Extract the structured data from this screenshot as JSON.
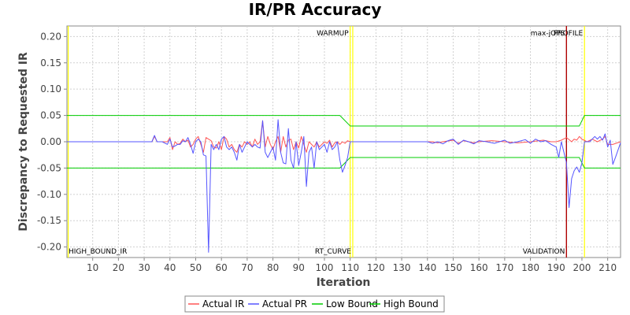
{
  "chart_data": {
    "type": "line",
    "title": "IR/PR Accuracy",
    "xlabel": "Iteration",
    "ylabel": "Discrepancy to Requested IR",
    "xlim": [
      0,
      215
    ],
    "ylim": [
      -0.22,
      0.22
    ],
    "xticks": [
      10,
      20,
      30,
      40,
      50,
      60,
      70,
      80,
      90,
      100,
      110,
      120,
      130,
      140,
      150,
      160,
      170,
      180,
      190,
      200,
      210
    ],
    "yticks": [
      -0.2,
      -0.15,
      -0.1,
      -0.05,
      0.0,
      0.05,
      0.1,
      0.15,
      0.2
    ],
    "grid": true,
    "legend_position": "bottom",
    "markers": [
      {
        "x": 110,
        "label": "WARMUP",
        "color": "#ffff00",
        "label_pos": "top"
      },
      {
        "x": 111,
        "label": "RT_CURVE",
        "color": "#ffff00",
        "label_pos": "bottom"
      },
      {
        "x": 194,
        "label": "max-jOPS",
        "color": "#b00000",
        "label_pos": "top"
      },
      {
        "x": 194,
        "label": "VALIDATION",
        "color": "#b00000",
        "label_pos": "bottom"
      },
      {
        "x": 201,
        "label": "PROFILE",
        "color": "#ffff00",
        "label_pos": "top"
      },
      {
        "x": 0.5,
        "label": "HIGH_BOUND_IR",
        "color": "#ffff00",
        "label_pos": "bottom"
      }
    ],
    "series": [
      {
        "name": "Actual IR",
        "color": "#ff5555",
        "points": [
          [
            0,
            0
          ],
          [
            33,
            0
          ],
          [
            34,
            0.01
          ],
          [
            35,
            0
          ],
          [
            37,
            0
          ],
          [
            39,
            0
          ],
          [
            40,
            0.008
          ],
          [
            41,
            -0.015
          ],
          [
            42,
            0
          ],
          [
            43,
            -0.005
          ],
          [
            44,
            -0.003
          ],
          [
            45,
            0.005
          ],
          [
            46,
            0
          ],
          [
            47,
            0.003
          ],
          [
            48,
            -0.01
          ],
          [
            49,
            -0.005
          ],
          [
            50,
            0.005
          ],
          [
            51,
            0.01
          ],
          [
            52,
            -0.005
          ],
          [
            53,
            -0.02
          ],
          [
            54,
            0.008
          ],
          [
            55,
            0.005
          ],
          [
            56,
            0.002
          ],
          [
            57,
            -0.01
          ],
          [
            58,
            -0.012
          ],
          [
            59,
            0
          ],
          [
            60,
            -0.015
          ],
          [
            61,
            0.01
          ],
          [
            62,
            0.005
          ],
          [
            63,
            -0.01
          ],
          [
            64,
            -0.005
          ],
          [
            65,
            -0.015
          ],
          [
            66,
            -0.02
          ],
          [
            67,
            -0.005
          ],
          [
            68,
            -0.01
          ],
          [
            69,
            0
          ],
          [
            70,
            -0.005
          ],
          [
            71,
            0
          ],
          [
            72,
            -0.01
          ],
          [
            73,
            0.005
          ],
          [
            74,
            -0.005
          ],
          [
            75,
            0
          ],
          [
            76,
            0.04
          ],
          [
            77,
            -0.01
          ],
          [
            78,
            0.01
          ],
          [
            79,
            -0.005
          ],
          [
            80,
            -0.015
          ],
          [
            81,
            0
          ],
          [
            82,
            0.01
          ],
          [
            83,
            -0.02
          ],
          [
            84,
            0.01
          ],
          [
            85,
            -0.01
          ],
          [
            86,
            0.003
          ],
          [
            87,
            0.005
          ],
          [
            88,
            -0.015
          ],
          [
            89,
            0
          ],
          [
            90,
            -0.012
          ],
          [
            91,
            0.01
          ],
          [
            92,
            -0.005
          ],
          [
            93,
            -0.02
          ],
          [
            94,
            0
          ],
          [
            95,
            -0.005
          ],
          [
            96,
            -0.01
          ],
          [
            97,
            0
          ],
          [
            98,
            -0.01
          ],
          [
            99,
            -0.005
          ],
          [
            100,
            0
          ],
          [
            101,
            -0.003
          ],
          [
            102,
            0.003
          ],
          [
            103,
            -0.01
          ],
          [
            104,
            -0.002
          ],
          [
            105,
            0
          ],
          [
            106,
            -0.005
          ],
          [
            107,
            0
          ],
          [
            108,
            -0.003
          ],
          [
            109,
            0.002
          ],
          [
            110,
            0
          ],
          [
            140,
            0
          ],
          [
            142,
            0
          ],
          [
            144,
            -0.002
          ],
          [
            146,
            0
          ],
          [
            150,
            0.003
          ],
          [
            152,
            -0.003
          ],
          [
            154,
            0.002
          ],
          [
            156,
            0
          ],
          [
            158,
            -0.002
          ],
          [
            160,
            0
          ],
          [
            165,
            0.002
          ],
          [
            170,
            0
          ],
          [
            175,
            -0.002
          ],
          [
            180,
            0
          ],
          [
            185,
            0.003
          ],
          [
            188,
            0
          ],
          [
            190,
            0
          ],
          [
            192,
            0.003
          ],
          [
            194,
            0.008
          ],
          [
            196,
            0
          ],
          [
            197,
            0.005
          ],
          [
            198,
            0.003
          ],
          [
            199,
            0.01
          ],
          [
            200,
            0.005
          ],
          [
            202,
            0
          ],
          [
            204,
            0.005
          ],
          [
            206,
            0
          ],
          [
            208,
            0.005
          ],
          [
            209,
            0.01
          ],
          [
            210,
            -0.005
          ],
          [
            212,
            -0.005
          ],
          [
            215,
            0
          ]
        ]
      },
      {
        "name": "Actual PR",
        "color": "#5555ff",
        "points": [
          [
            0,
            0
          ],
          [
            33,
            0
          ],
          [
            34,
            0.012
          ],
          [
            35,
            0
          ],
          [
            37,
            0
          ],
          [
            39,
            -0.005
          ],
          [
            40,
            0.005
          ],
          [
            41,
            -0.01
          ],
          [
            42,
            -0.008
          ],
          [
            43,
            -0.005
          ],
          [
            44,
            -0.005
          ],
          [
            45,
            0.002
          ],
          [
            46,
            0
          ],
          [
            47,
            0.008
          ],
          [
            48,
            -0.005
          ],
          [
            49,
            -0.022
          ],
          [
            50,
            0
          ],
          [
            51,
            0.005
          ],
          [
            52,
            0
          ],
          [
            53,
            -0.025
          ],
          [
            54,
            -0.027
          ],
          [
            55,
            -0.21
          ],
          [
            56,
            -0.005
          ],
          [
            57,
            -0.015
          ],
          [
            58,
            -0.005
          ],
          [
            59,
            -0.015
          ],
          [
            60,
            0.005
          ],
          [
            61,
            0.01
          ],
          [
            62,
            -0.01
          ],
          [
            63,
            -0.015
          ],
          [
            64,
            -0.01
          ],
          [
            65,
            -0.02
          ],
          [
            66,
            -0.035
          ],
          [
            67,
            -0.005
          ],
          [
            68,
            -0.02
          ],
          [
            69,
            -0.01
          ],
          [
            70,
            0
          ],
          [
            71,
            -0.005
          ],
          [
            72,
            -0.01
          ],
          [
            73,
            -0.005
          ],
          [
            74,
            -0.01
          ],
          [
            75,
            -0.012
          ],
          [
            76,
            0.04
          ],
          [
            77,
            -0.02
          ],
          [
            78,
            -0.03
          ],
          [
            79,
            -0.02
          ],
          [
            80,
            -0.01
          ],
          [
            81,
            -0.035
          ],
          [
            82,
            0.042
          ],
          [
            83,
            -0.02
          ],
          [
            84,
            -0.04
          ],
          [
            85,
            -0.042
          ],
          [
            86,
            0.025
          ],
          [
            87,
            -0.035
          ],
          [
            88,
            -0.05
          ],
          [
            89,
            0
          ],
          [
            90,
            -0.045
          ],
          [
            91,
            -0.02
          ],
          [
            92,
            0.01
          ],
          [
            93,
            -0.085
          ],
          [
            94,
            -0.02
          ],
          [
            95,
            -0.01
          ],
          [
            96,
            -0.05
          ],
          [
            97,
            0
          ],
          [
            98,
            -0.015
          ],
          [
            99,
            -0.01
          ],
          [
            100,
            -0.005
          ],
          [
            101,
            -0.02
          ],
          [
            102,
            0
          ],
          [
            103,
            -0.015
          ],
          [
            104,
            -0.01
          ],
          [
            105,
            0
          ],
          [
            106,
            -0.035
          ],
          [
            107,
            -0.058
          ],
          [
            108,
            -0.045
          ],
          [
            109,
            -0.03
          ],
          [
            110,
            0
          ],
          [
            140,
            0
          ],
          [
            142,
            -0.003
          ],
          [
            144,
            0
          ],
          [
            146,
            -0.004
          ],
          [
            148,
            0.002
          ],
          [
            150,
            0.005
          ],
          [
            152,
            -0.005
          ],
          [
            154,
            0.003
          ],
          [
            156,
            0
          ],
          [
            158,
            -0.004
          ],
          [
            160,
            0.002
          ],
          [
            163,
            0
          ],
          [
            166,
            -0.003
          ],
          [
            170,
            0.003
          ],
          [
            172,
            -0.003
          ],
          [
            175,
            0
          ],
          [
            178,
            0.004
          ],
          [
            180,
            -0.003
          ],
          [
            182,
            0.005
          ],
          [
            184,
            0
          ],
          [
            186,
            0.002
          ],
          [
            188,
            -0.005
          ],
          [
            190,
            -0.01
          ],
          [
            191,
            -0.03
          ],
          [
            192,
            0
          ],
          [
            193,
            -0.02
          ],
          [
            194,
            -0.04
          ],
          [
            195,
            -0.125
          ],
          [
            196,
            -0.07
          ],
          [
            197,
            -0.055
          ],
          [
            198,
            -0.048
          ],
          [
            199,
            -0.058
          ],
          [
            200,
            -0.04
          ],
          [
            201,
            0
          ],
          [
            203,
            0
          ],
          [
            205,
            0.01
          ],
          [
            206,
            0.005
          ],
          [
            207,
            0.01
          ],
          [
            208,
            0.003
          ],
          [
            209,
            0.015
          ],
          [
            210,
            -0.01
          ],
          [
            211,
            0.003
          ],
          [
            212,
            -0.043
          ],
          [
            213,
            -0.03
          ],
          [
            215,
            -0.002
          ]
        ]
      },
      {
        "name": "Low Bound",
        "color": "#00cc00",
        "points": [
          [
            0,
            -0.05
          ],
          [
            106,
            -0.05
          ],
          [
            110,
            -0.03
          ],
          [
            199,
            -0.03
          ],
          [
            201,
            -0.05
          ],
          [
            215,
            -0.05
          ]
        ]
      },
      {
        "name": "High Bound",
        "color": "#00cc00",
        "points": [
          [
            0,
            0.05
          ],
          [
            106,
            0.05
          ],
          [
            110,
            0.03
          ],
          [
            199,
            0.03
          ],
          [
            201,
            0.05
          ],
          [
            215,
            0.05
          ]
        ]
      }
    ]
  }
}
